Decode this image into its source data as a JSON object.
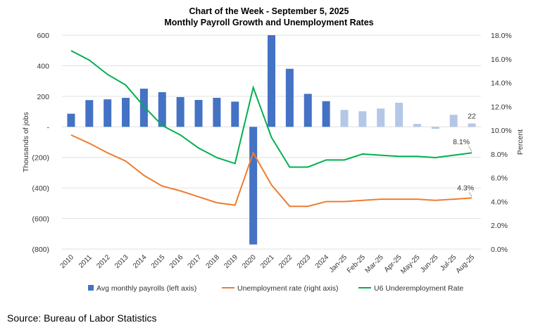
{
  "chart_data": {
    "type": "bar+line",
    "title": "Chart of the Week - September 5, 2025",
    "subtitle": "Monthly Payroll Growth and Unemployment Rates",
    "categories": [
      "2010",
      "2011",
      "2012",
      "2013",
      "2014",
      "2015",
      "2016",
      "2017",
      "2018",
      "2019",
      "2020",
      "2021",
      "2022",
      "2023",
      "2024",
      "Jan-25",
      "Feb-25",
      "Mar-25",
      "Apr-25",
      "May-25",
      "Jun-25",
      "Jul-25",
      "Aug-25"
    ],
    "ylabel": "Thousands of jobs",
    "y2label": "Percent",
    "ylim": [
      -800,
      600
    ],
    "y2lim": [
      0,
      18
    ],
    "yticks": [
      "600",
      "400",
      "200",
      "-",
      "(200)",
      "(400)",
      "(600)",
      "(800)"
    ],
    "ytick_values": [
      600,
      400,
      200,
      0,
      -200,
      -400,
      -600,
      -800
    ],
    "y2ticks": [
      "18.0%",
      "16.0%",
      "14.0%",
      "12.0%",
      "10.0%",
      "8.0%",
      "6.0%",
      "4.0%",
      "2.0%",
      "0.0%"
    ],
    "y2tick_values": [
      18,
      16,
      14,
      12,
      10,
      8,
      6,
      4,
      2,
      0
    ],
    "grid": true,
    "legend_position": "bottom",
    "series": [
      {
        "name": "Avg monthly payrolls (left axis)",
        "type": "bar",
        "axis": "left",
        "values": [
          86,
          175,
          180,
          190,
          250,
          227,
          195,
          176,
          190,
          165,
          -770,
          600,
          380,
          216,
          168,
          111,
          102,
          120,
          158,
          19,
          -13,
          79,
          22
        ]
      },
      {
        "name": "Unemployment rate (right axis)",
        "type": "line",
        "axis": "right",
        "values": [
          9.6,
          8.9,
          8.1,
          7.4,
          6.2,
          5.3,
          4.9,
          4.4,
          3.9,
          3.7,
          8.1,
          5.4,
          3.6,
          3.6,
          4.0,
          4.0,
          4.1,
          4.2,
          4.2,
          4.2,
          4.1,
          4.2,
          4.3
        ]
      },
      {
        "name": "U6 Underemployment Rate",
        "type": "line",
        "axis": "right",
        "values": [
          16.7,
          15.9,
          14.7,
          13.8,
          12.0,
          10.4,
          9.6,
          8.5,
          7.7,
          7.2,
          13.6,
          9.4,
          6.9,
          6.9,
          7.5,
          7.5,
          8.0,
          7.9,
          7.8,
          7.8,
          7.7,
          7.9,
          8.1
        ]
      }
    ],
    "annotations": [
      "22",
      "8.1%",
      "4.3%"
    ]
  },
  "colors": {
    "bar_annual": "#4472C4",
    "bar_monthly": "#B4C7E7",
    "unemployment": "#ED7D31",
    "u6": "#00B050",
    "grid": "#E0E0E0"
  },
  "source": "Source: Bureau of Labor Statistics"
}
